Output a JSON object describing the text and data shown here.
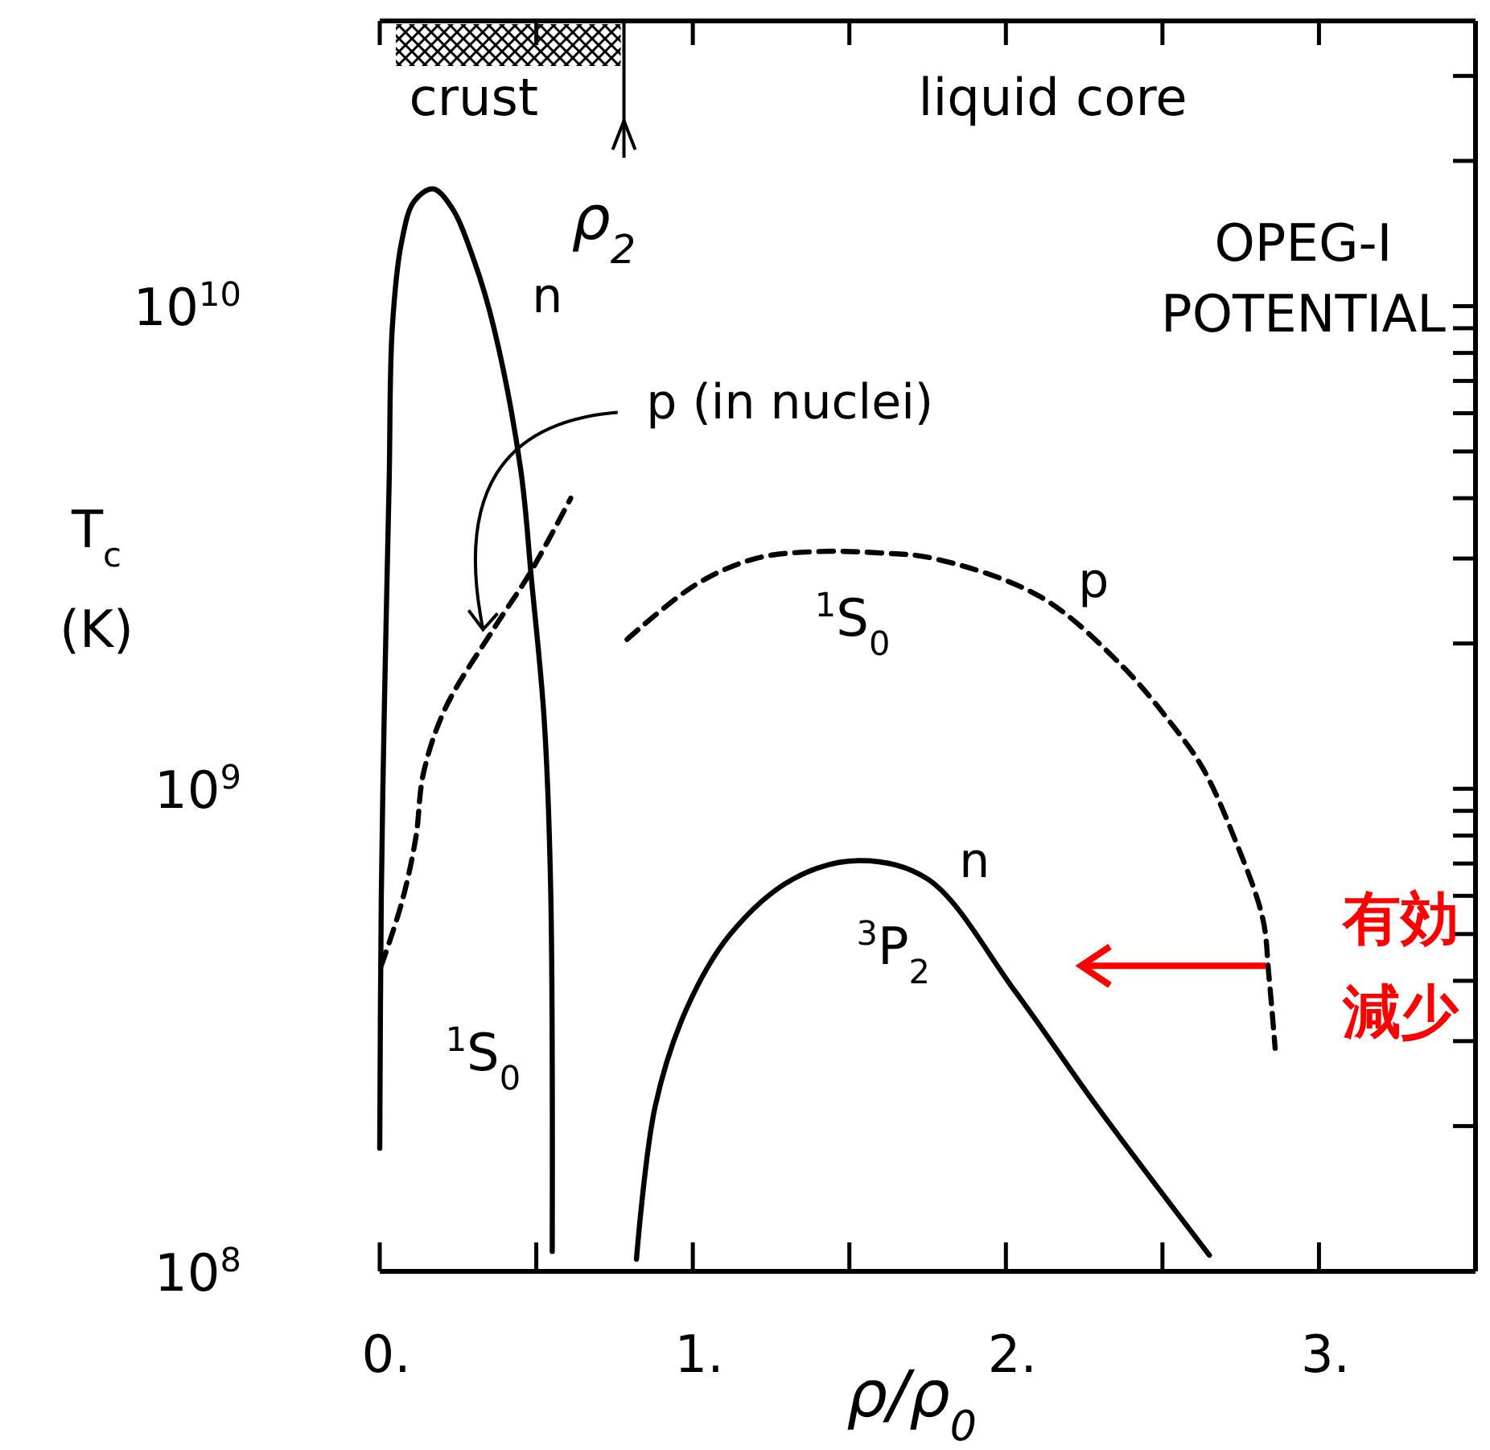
{
  "chart_data": {
    "type": "line",
    "xlabel": "ρ/ρ$_{0}$",
    "ylabel": "T$_{c}$ (K)",
    "log": "y",
    "marker": "none",
    "xlim": [
      0,
      3.5
    ],
    "xticks": [
      {
        "value": 0,
        "label": "0."
      },
      {
        "value": 0.5,
        "label": null
      },
      {
        "value": 1,
        "label": "1."
      },
      {
        "value": 1.5,
        "label": null
      },
      {
        "value": 2,
        "label": "2."
      },
      {
        "value": 2.5,
        "label": null
      },
      {
        "value": 3,
        "label": "3."
      }
    ],
    "ylim": [
      100000000,
      39000000000
    ],
    "yticks": [
      {
        "value": 100000000,
        "label": "10$^{8}$"
      },
      {
        "value": 200000000,
        "label": null
      },
      {
        "value": 300000000,
        "label": null
      },
      {
        "value": 400000000,
        "label": null
      },
      {
        "value": 500000000,
        "label": null
      },
      {
        "value": 600000000,
        "label": null
      },
      {
        "value": 700000000,
        "label": null
      },
      {
        "value": 800000000,
        "label": null
      },
      {
        "value": 900000000,
        "label": null
      },
      {
        "value": 1000000000,
        "label": "10$^{9}$"
      },
      {
        "value": 2000000000,
        "label": null
      },
      {
        "value": 3000000000,
        "label": null
      },
      {
        "value": 4000000000,
        "label": null
      },
      {
        "value": 5000000000,
        "label": null
      },
      {
        "value": 6000000000,
        "label": null
      },
      {
        "value": 7000000000,
        "label": null
      },
      {
        "value": 8000000000,
        "label": null
      },
      {
        "value": 9000000000,
        "label": null
      },
      {
        "value": 10000000000,
        "label": "10$^{10}$"
      },
      {
        "value": 20000000000,
        "label": null
      },
      {
        "value": 30000000000,
        "label": null
      }
    ],
    "series": [
      {
        "name": "n",
        "color": "#000000",
        "line_style": "solid",
        "x": [
          0,
          0.005,
          0.015,
          0.03,
          0.04,
          0.07,
          0.11,
          0.17,
          0.23,
          0.3,
          0.365,
          0.45,
          0.485,
          0.525,
          0.546,
          0.551
        ],
        "values": [
          180000000,
          600000000,
          1500000000,
          4300000000,
          9000000000,
          13600000000,
          16500000000,
          17500000000,
          16000000000,
          12500000000,
          9000000000,
          4600000000,
          2700000000,
          1400000000,
          620000000,
          110000000
        ]
      },
      {
        "name": "p (in nuclei)",
        "color": "#000000",
        "line_style": "dashed",
        "x": [
          0.005,
          0.07,
          0.115,
          0.14,
          0.21,
          0.365,
          0.48,
          0.61
        ],
        "values": [
          430000000,
          580000000,
          790000000,
          1080000000,
          1470000000,
          2150000000,
          2800000000,
          4000000000
        ]
      },
      {
        "name": "p",
        "color": "#000000",
        "line_style": "dashed",
        "x": [
          0.79,
          1.01,
          1.2,
          1.39,
          1.6,
          1.77,
          2.11,
          2.37,
          2.53,
          2.63,
          2.73,
          2.82,
          2.84,
          2.86
        ],
        "values": [
          2040000000,
          2650000000,
          3000000000,
          3100000000,
          3080000000,
          3000000000,
          2500000000,
          1800000000,
          1360000000,
          1100000000,
          790000000,
          540000000,
          410000000,
          290000000
        ]
      },
      {
        "name": "n",
        "color": "#000000",
        "line_style": "solid",
        "x": [
          0.82,
          0.88,
          0.98,
          1.12,
          1.32,
          1.53,
          1.75,
          2.03,
          2.29,
          2.65
        ],
        "values": [
          106000000,
          220000000,
          350000000,
          500000000,
          650000000,
          710000000,
          650000000,
          380000000,
          220000000,
          108000000
        ]
      }
    ],
    "annotations": [
      "crust",
      "liquid core",
      "ρ$_{2}$",
      "$^{1}$S$_{0}$",
      "$^{1}$S$_{0}$",
      "$^{3}$P$_{2}$",
      "OPEG-I POTENTIAL",
      "有効減少"
    ]
  }
}
